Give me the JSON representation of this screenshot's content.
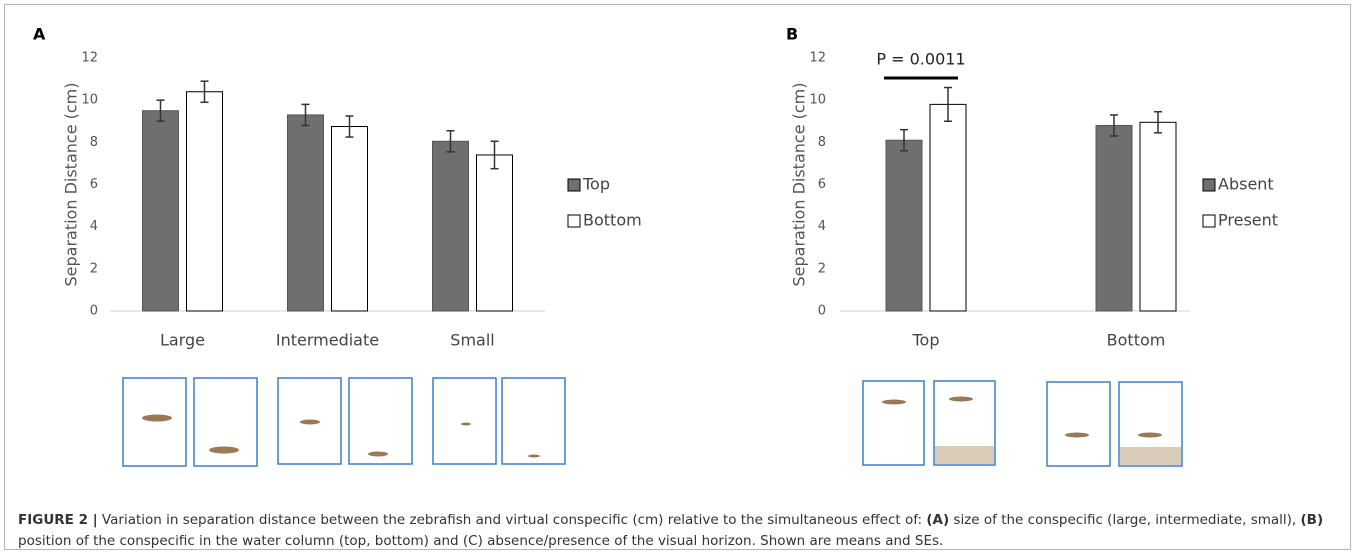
{
  "chart_data": [
    {
      "type": "bar",
      "panel": "A",
      "ylabel": "Separation Distance (cm)",
      "categories": [
        "Large",
        "Intermediate",
        "Small"
      ],
      "series": [
        {
          "name": "Top",
          "color": "#6f6f6f",
          "values": [
            9.5,
            9.3,
            8.05
          ],
          "errors": [
            0.5,
            0.5,
            0.5
          ]
        },
        {
          "name": "Bottom",
          "color": "#ffffff",
          "values": [
            10.4,
            8.75,
            7.4
          ],
          "errors": [
            0.5,
            0.5,
            0.65
          ]
        }
      ],
      "ylim": [
        0,
        12
      ],
      "yticks": [
        0,
        2,
        4,
        6,
        8,
        10,
        12
      ],
      "grid": false
    },
    {
      "type": "bar",
      "panel": "B",
      "ylabel": "Separation Distance (cm)",
      "categories": [
        "Top",
        "Bottom"
      ],
      "series": [
        {
          "name": "Absent",
          "color": "#6f6f6f",
          "values": [
            8.1,
            8.8
          ],
          "errors": [
            0.5,
            0.5
          ]
        },
        {
          "name": "Present",
          "color": "#ffffff",
          "values": [
            9.8,
            8.95
          ],
          "errors": [
            0.8,
            0.5
          ]
        }
      ],
      "annotation": "P = 0.0011",
      "ylim": [
        0,
        12
      ],
      "yticks": [
        0,
        2,
        4,
        6,
        8,
        10,
        12
      ],
      "grid": false
    }
  ],
  "caption": [
    "FIGURE 2 |",
    " Variation in separation distance between the zebrafish and virtual conspecific (cm) relative to the simultaneous effect of: ",
    "(A)",
    " size of the conspecific (large, intermediate, small), ",
    "(B)",
    " position of the conspecific in the water column (top, bottom) and (C) absence/presence of the visual horizon. Shown are means and SEs."
  ]
}
